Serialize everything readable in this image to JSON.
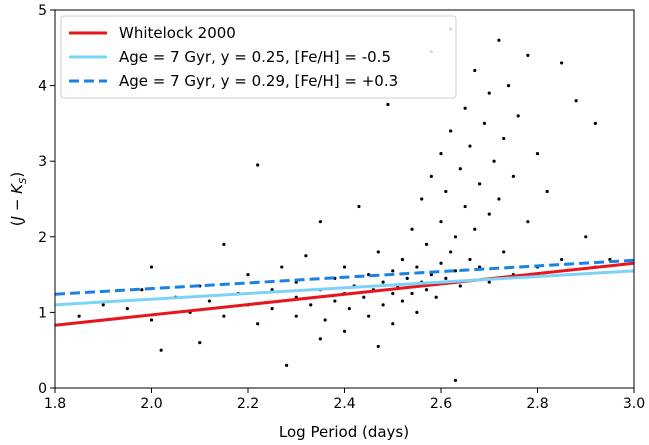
{
  "chart_data": {
    "type": "scatter",
    "xlabel": "Log Period (days)",
    "ylabel": [
      "(",
      "J",
      " − ",
      "K",
      "S",
      ")"
    ],
    "xlim": [
      1.8,
      3.0
    ],
    "ylim": [
      0,
      5
    ],
    "xticks": [
      1.8,
      {
        "value": 2,
        "label": "2.0"
      },
      2.2,
      2.4,
      2.6,
      2.8,
      {
        "value": 3,
        "label": "3.0"
      }
    ],
    "yticks": [
      0,
      1,
      2,
      3,
      4,
      5
    ],
    "grid": false,
    "legend": "upper left",
    "color": "#000000",
    "x": [
      1.85,
      1.9,
      1.95,
      1.98,
      2.0,
      2.0,
      2.02,
      2.05,
      2.08,
      2.1,
      2.1,
      2.12,
      2.15,
      2.15,
      2.18,
      2.2,
      2.2,
      2.22,
      2.22,
      2.25,
      2.25,
      2.27,
      2.28,
      2.3,
      2.3,
      2.3,
      2.32,
      2.33,
      2.35,
      2.35,
      2.36,
      2.38,
      2.38,
      2.4,
      2.4,
      2.4,
      2.41,
      2.42,
      2.43,
      2.44,
      2.45,
      2.45,
      2.46,
      2.47,
      2.48,
      2.48,
      2.49,
      2.5,
      2.5,
      2.5,
      2.51,
      2.52,
      2.52,
      2.53,
      2.54,
      2.54,
      2.55,
      2.55,
      2.56,
      2.56,
      2.57,
      2.57,
      2.58,
      2.58,
      2.59,
      2.6,
      2.6,
      2.6,
      2.61,
      2.61,
      2.62,
      2.62,
      2.63,
      2.63,
      2.64,
      2.64,
      2.65,
      2.65,
      2.66,
      2.66,
      2.67,
      2.67,
      2.68,
      2.68,
      2.69,
      2.7,
      2.7,
      2.7,
      2.71,
      2.72,
      2.72,
      2.73,
      2.73,
      2.74,
      2.75,
      2.75,
      2.76,
      2.78,
      2.78,
      2.8,
      2.8,
      2.82,
      2.85,
      2.85,
      2.88,
      2.9,
      2.92,
      2.92,
      2.95,
      2.63,
      2.47,
      2.35,
      2.58,
      2.62
    ],
    "y": [
      0.95,
      1.1,
      1.05,
      1.3,
      0.9,
      1.6,
      0.5,
      1.2,
      1.0,
      1.35,
      0.6,
      1.15,
      1.9,
      0.95,
      1.25,
      1.1,
      1.5,
      0.85,
      2.95,
      1.3,
      1.05,
      1.6,
      0.3,
      1.2,
      1.4,
      0.95,
      1.75,
      1.1,
      1.3,
      2.2,
      0.9,
      1.45,
      1.15,
      1.25,
      1.6,
      0.75,
      1.05,
      1.35,
      2.4,
      1.2,
      1.5,
      0.95,
      1.3,
      1.8,
      1.1,
      1.4,
      3.75,
      1.25,
      1.55,
      0.85,
      1.35,
      1.15,
      1.7,
      1.45,
      2.1,
      1.25,
      1.6,
      1.0,
      1.4,
      2.5,
      1.3,
      1.9,
      1.5,
      2.8,
      1.2,
      1.65,
      2.2,
      3.1,
      1.45,
      2.6,
      1.8,
      3.4,
      1.55,
      2.0,
      2.9,
      1.35,
      2.4,
      3.7,
      1.7,
      3.2,
      2.1,
      4.2,
      2.7,
      1.6,
      3.5,
      2.3,
      3.9,
      1.4,
      3.0,
      4.6,
      2.5,
      3.3,
      1.8,
      4.0,
      2.8,
      1.5,
      3.6,
      2.2,
      4.4,
      3.1,
      1.6,
      2.6,
      4.3,
      1.7,
      3.8,
      2.0,
      3.5,
      1.6,
      1.7,
      0.1,
      0.55,
      0.65,
      4.45,
      4.75
    ],
    "lines": [
      {
        "name": "Whitelock 2000",
        "color": "#e8141e",
        "style": "solid",
        "x": [
          1.8,
          3.0
        ],
        "y": [
          0.83,
          1.65
        ]
      },
      {
        "name": "Age = 7 Gyr, y = 0.25, [Fe/H] = -0.5",
        "color": "#7dd3f5",
        "style": "solid",
        "x": [
          1.8,
          3.0
        ],
        "y": [
          1.1,
          1.55
        ]
      },
      {
        "name": "Age = 7 Gyr, y = 0.29, [Fe/H] = +0.3",
        "color": "#1a82e6",
        "style": "dashed",
        "x": [
          1.8,
          3.0
        ],
        "y": [
          1.24,
          1.69
        ]
      }
    ]
  }
}
